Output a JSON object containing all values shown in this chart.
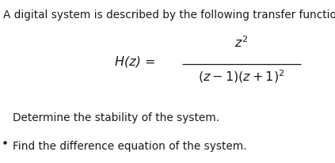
{
  "background_color": "#ffffff",
  "text_color": "#1a1a1a",
  "line1": "A digital system is described by the following transfer function",
  "line1_fontsize": 9.8,
  "hz_label": "H(z) =",
  "hz_fontsize": 11.5,
  "numerator": "$z^2$",
  "num_fontsize": 11.5,
  "denominator": "$(z-1)(z+1)^2$",
  "den_fontsize": 11.5,
  "text2": "Determine the stability of the system.",
  "text2_fontsize": 9.8,
  "text3": "Find the difference equation of the system.",
  "text3_fontsize": 9.8,
  "bullet": "■",
  "figwidth": 4.23,
  "figheight": 2.07,
  "dpi": 100
}
